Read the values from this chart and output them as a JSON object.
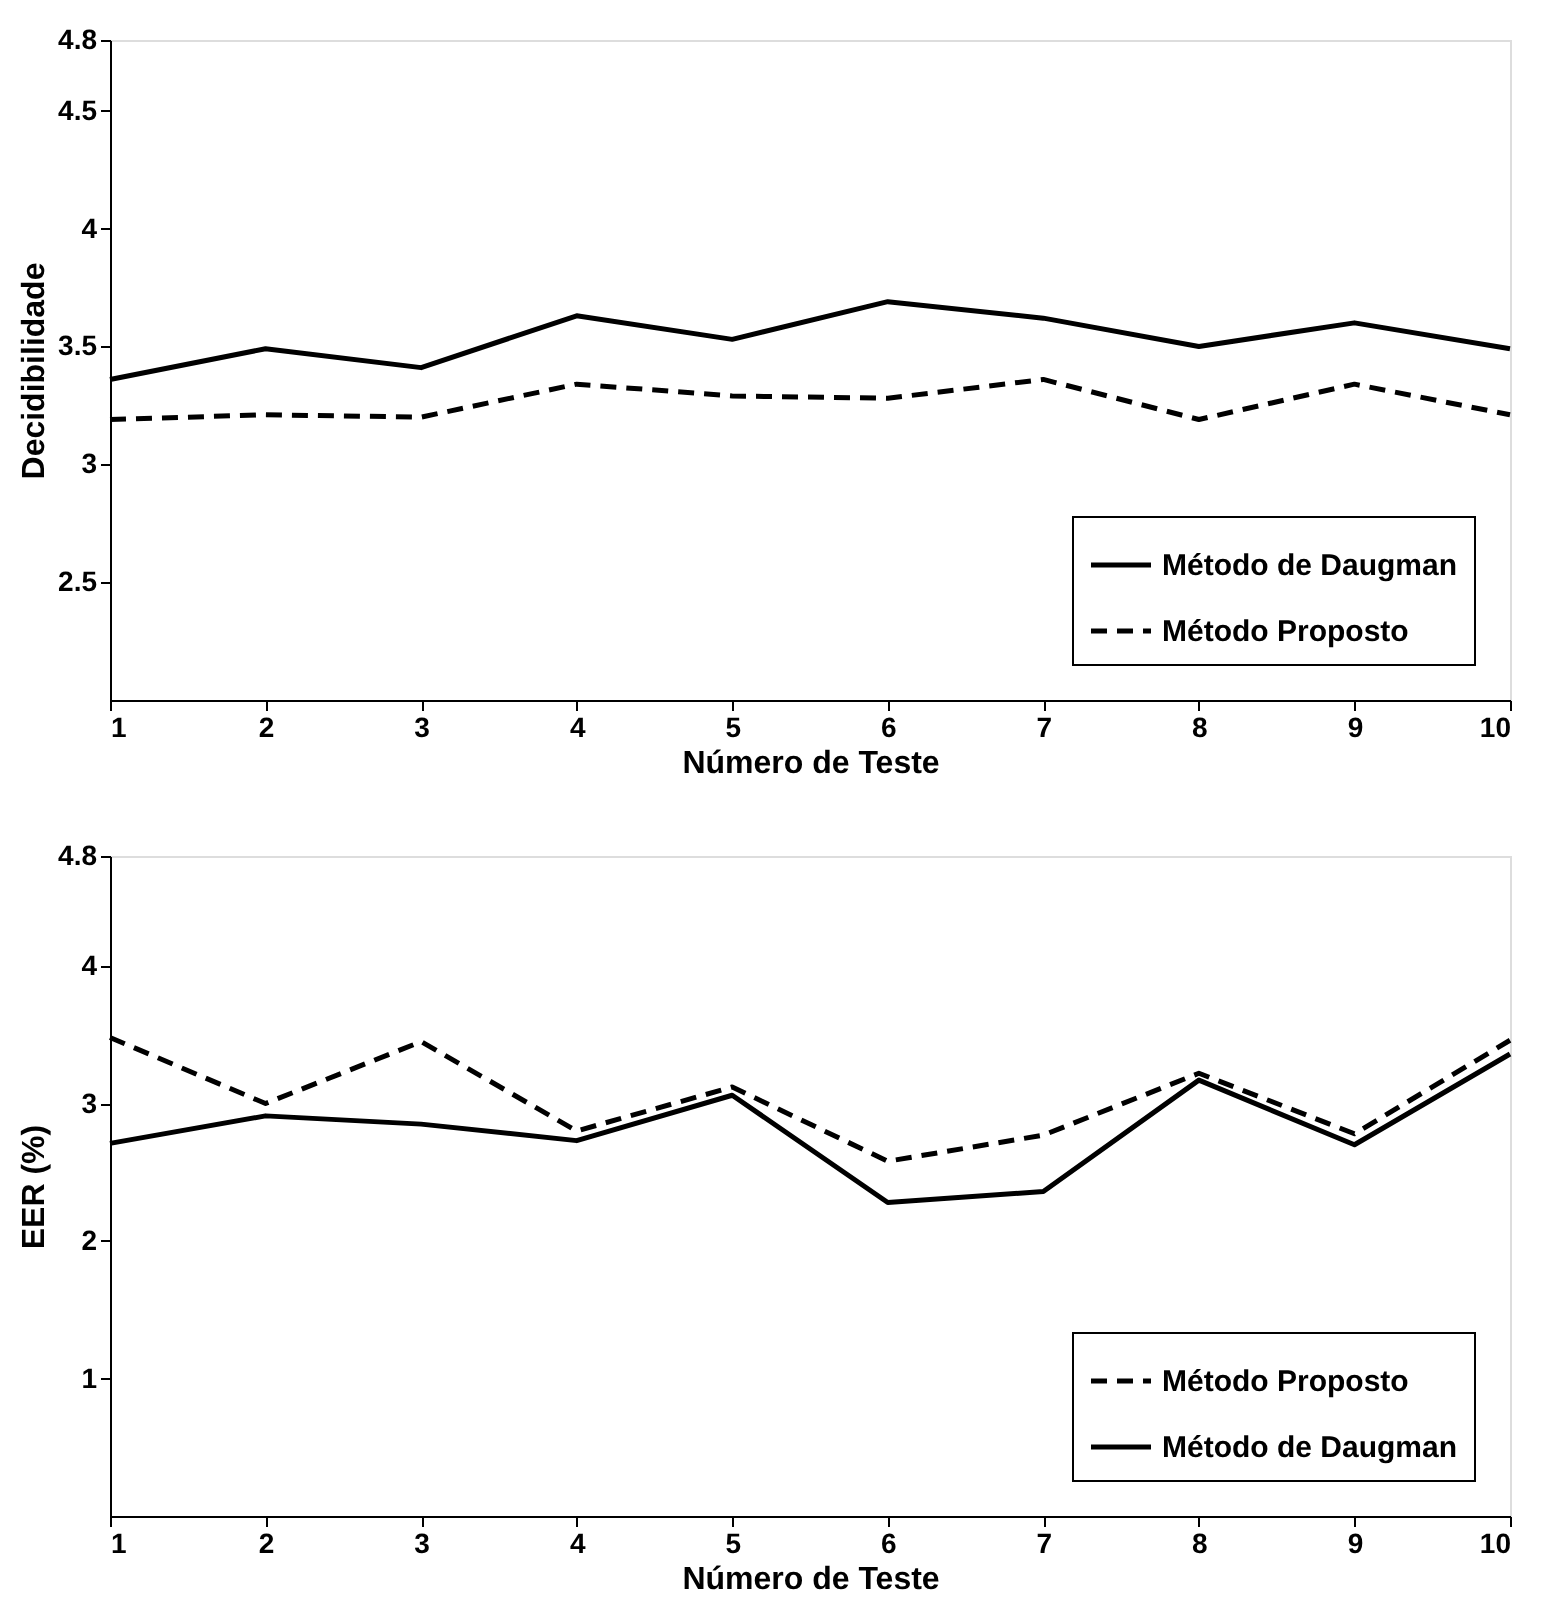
{
  "chart_data": [
    {
      "type": "line",
      "xlabel": "Número de Teste",
      "ylabel": "Decidibilidade",
      "x": [
        1,
        2,
        3,
        4,
        5,
        6,
        7,
        8,
        9,
        10
      ],
      "xlim": [
        1,
        10
      ],
      "xticks": [
        1,
        2,
        3,
        4,
        5,
        6,
        7,
        8,
        9,
        10
      ],
      "ylim": [
        2,
        4.8
      ],
      "yticks": [
        2.5,
        3,
        3.5,
        4,
        4.5,
        4.8
      ],
      "legend": "bottom right",
      "grid": false,
      "series": [
        {
          "name": "Método de Daugman",
          "color": "#000000",
          "line_style": "solid",
          "values": [
            3.36,
            3.49,
            3.41,
            3.63,
            3.53,
            3.69,
            3.62,
            3.5,
            3.6,
            3.49
          ]
        },
        {
          "name": "Método Proposto",
          "color": "#000000",
          "line_style": "dashed",
          "values": [
            3.19,
            3.21,
            3.2,
            3.34,
            3.29,
            3.28,
            3.36,
            3.19,
            3.34,
            3.21
          ]
        }
      ]
    },
    {
      "type": "line",
      "xlabel": "Número de Teste",
      "ylabel": "EER (%)",
      "x": [
        1,
        2,
        3,
        4,
        5,
        6,
        7,
        8,
        9,
        10
      ],
      "xlim": [
        1,
        10
      ],
      "xticks": [
        1,
        2,
        3,
        4,
        5,
        6,
        7,
        8,
        9,
        10
      ],
      "ylim": [
        0,
        4.8
      ],
      "yticks": [
        1,
        2,
        3,
        4,
        4.8
      ],
      "legend": "bottom right",
      "grid": false,
      "series": [
        {
          "name": "Método Proposto",
          "color": "#000000",
          "line_style": "dashed",
          "values": [
            3.48,
            3.0,
            3.45,
            2.8,
            3.12,
            2.58,
            2.77,
            3.22,
            2.78,
            3.46
          ]
        },
        {
          "name": "Método de Daugman",
          "color": "#000000",
          "line_style": "solid",
          "values": [
            2.71,
            2.91,
            2.85,
            2.73,
            3.06,
            2.28,
            2.36,
            3.17,
            2.7,
            3.36
          ]
        }
      ]
    }
  ]
}
